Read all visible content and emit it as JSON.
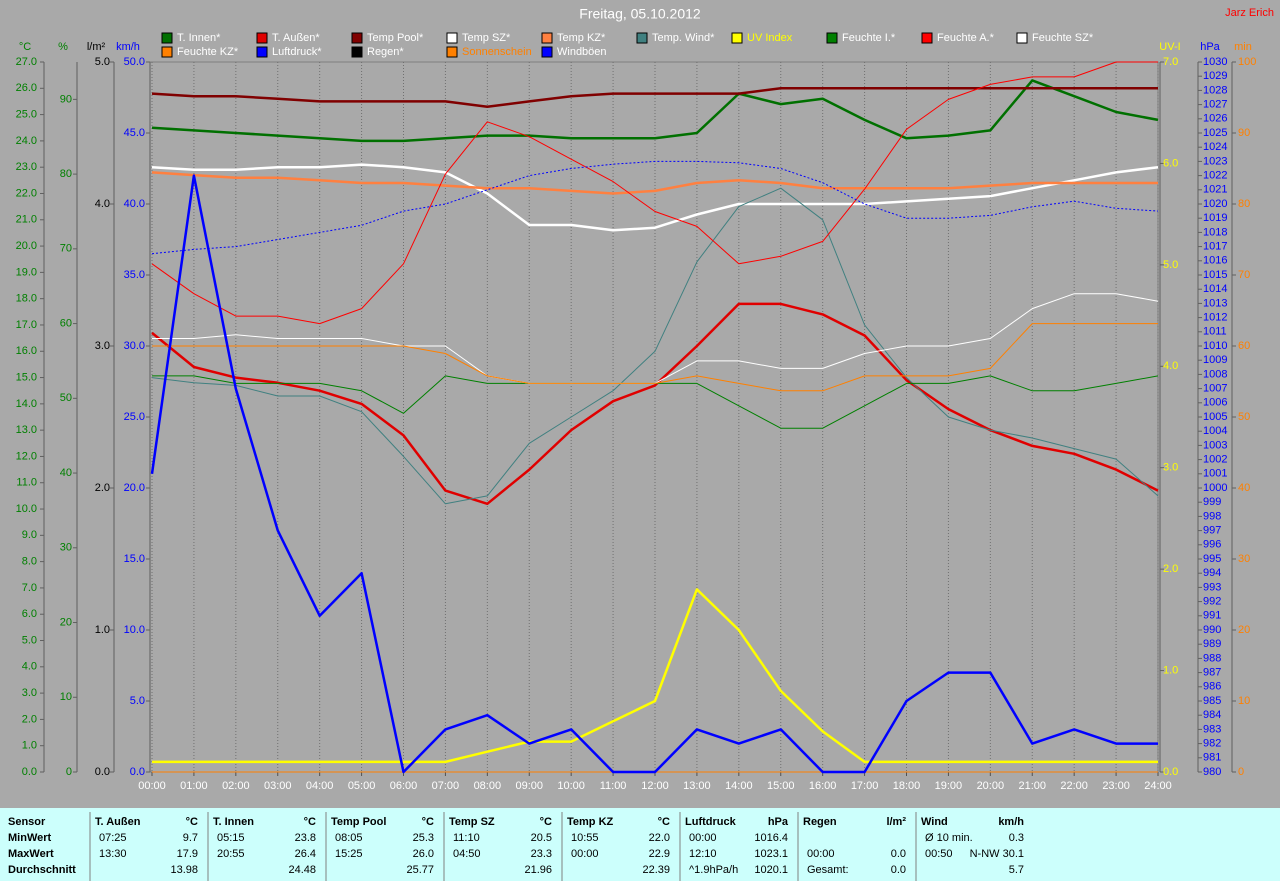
{
  "chart_data": {
    "type": "line",
    "title": "Freitag, 05.10.2012",
    "annotations": [
      "Jarz Erich"
    ],
    "grid": true,
    "x": [
      0,
      1,
      2,
      3,
      4,
      5,
      6,
      7,
      8,
      9,
      10,
      11,
      12,
      13,
      14,
      15,
      16,
      17,
      18,
      19,
      20,
      21,
      22,
      23,
      24
    ],
    "xlim": [
      0,
      24
    ],
    "xticks": [
      {
        "value": 0,
        "label": "00:00"
      },
      {
        "value": 1,
        "label": "01:00"
      },
      {
        "value": 2,
        "label": "02:00"
      },
      {
        "value": 3,
        "label": "03:00"
      },
      {
        "value": 4,
        "label": "04:00"
      },
      {
        "value": 5,
        "label": "05:00"
      },
      {
        "value": 6,
        "label": "06:00"
      },
      {
        "value": 7,
        "label": "07:00"
      },
      {
        "value": 8,
        "label": "08:00"
      },
      {
        "value": 9,
        "label": "09:00"
      },
      {
        "value": 10,
        "label": "10:00"
      },
      {
        "value": 11,
        "label": "11:00"
      },
      {
        "value": 12,
        "label": "12:00"
      },
      {
        "value": 13,
        "label": "13:00"
      },
      {
        "value": 14,
        "label": "14:00"
      },
      {
        "value": 15,
        "label": "15:00"
      },
      {
        "value": 16,
        "label": "16:00"
      },
      {
        "value": 17,
        "label": "17:00"
      },
      {
        "value": 18,
        "label": "18:00"
      },
      {
        "value": 19,
        "label": "19:00"
      },
      {
        "value": 20,
        "label": "20:00"
      },
      {
        "value": 21,
        "label": "21:00"
      },
      {
        "value": 22,
        "label": "22:00"
      },
      {
        "value": 23,
        "label": "23:00"
      },
      {
        "value": 24,
        "label": "24:00"
      }
    ],
    "axes": [
      {
        "label": "°C",
        "color": "#008000",
        "ylim": [
          0,
          27
        ],
        "yticks": [
          {
            "value": 0,
            "label": "0.0"
          },
          {
            "value": 1,
            "label": "1.0"
          },
          {
            "value": 2,
            "label": "2.0"
          },
          {
            "value": 3,
            "label": "3.0"
          },
          {
            "value": 4,
            "label": "4.0"
          },
          {
            "value": 5,
            "label": "5.0"
          },
          {
            "value": 6,
            "label": "6.0"
          },
          {
            "value": 7,
            "label": "7.0"
          },
          {
            "value": 8,
            "label": "8.0"
          },
          {
            "value": 9,
            "label": "9.0"
          },
          {
            "value": 10,
            "label": "10.0"
          },
          {
            "value": 11,
            "label": "11.0"
          },
          {
            "value": 12,
            "label": "12.0"
          },
          {
            "value": 13,
            "label": "13.0"
          },
          {
            "value": 14,
            "label": "14.0"
          },
          {
            "value": 15,
            "label": "15.0"
          },
          {
            "value": 16,
            "label": "16.0"
          },
          {
            "value": 17,
            "label": "17.0"
          },
          {
            "value": 18,
            "label": "18.0"
          },
          {
            "value": 19,
            "label": "19.0"
          },
          {
            "value": 20,
            "label": "20.0"
          },
          {
            "value": 21,
            "label": "21.0"
          },
          {
            "value": 22,
            "label": "22.0"
          },
          {
            "value": 23,
            "label": "23.0"
          },
          {
            "value": 24,
            "label": "24.0"
          },
          {
            "value": 25,
            "label": "25.0"
          },
          {
            "value": 26,
            "label": "26.0"
          },
          {
            "value": 27,
            "label": "27.0"
          }
        ]
      },
      {
        "label": "%",
        "color": "#008000",
        "ylim": [
          0,
          95
        ],
        "yticks": [
          0,
          10,
          20,
          30,
          40,
          50,
          60,
          70,
          80,
          90
        ]
      },
      {
        "label": "l/m²",
        "color": "#000000",
        "ylim": [
          0,
          5
        ],
        "yticks": [
          {
            "value": 0,
            "label": "0.0"
          },
          {
            "value": 1,
            "label": "1.0"
          },
          {
            "value": 2,
            "label": "2.0"
          },
          {
            "value": 3,
            "label": "3.0"
          },
          {
            "value": 4,
            "label": "4.0"
          },
          {
            "value": 5,
            "label": "5.0"
          }
        ]
      },
      {
        "label": "km/h",
        "color": "#0000ff",
        "ylim": [
          0,
          50
        ],
        "yticks": [
          {
            "value": 0,
            "label": "0.0"
          },
          {
            "value": 5,
            "label": "5.0"
          },
          {
            "value": 10,
            "label": "10.0"
          },
          {
            "value": 15,
            "label": "15.0"
          },
          {
            "value": 20,
            "label": "20.0"
          },
          {
            "value": 25,
            "label": "25.0"
          },
          {
            "value": 30,
            "label": "30.0"
          },
          {
            "value": 35,
            "label": "35.0"
          },
          {
            "value": 40,
            "label": "40.0"
          },
          {
            "value": 45,
            "label": "45.0"
          },
          {
            "value": 50,
            "label": "50.0"
          }
        ]
      },
      {
        "label": "UV-I",
        "color": "#ffff00",
        "ylim": [
          0,
          7
        ],
        "yticks": [
          {
            "value": 0,
            "label": "0.0"
          },
          {
            "value": 1,
            "label": "1.0"
          },
          {
            "value": 2,
            "label": "2.0"
          },
          {
            "value": 3,
            "label": "3.0"
          },
          {
            "value": 4,
            "label": "4.0"
          },
          {
            "value": 5,
            "label": "5.0"
          },
          {
            "value": 6,
            "label": "6.0"
          },
          {
            "value": 7,
            "label": "7.0"
          }
        ]
      },
      {
        "label": "hPa",
        "color": "#0000ff",
        "ylim": [
          980,
          1030
        ],
        "yticks": [
          980,
          981,
          982,
          983,
          984,
          985,
          986,
          987,
          988,
          989,
          990,
          991,
          992,
          993,
          994,
          995,
          996,
          997,
          998,
          999,
          1000,
          1001,
          1002,
          1003,
          1004,
          1005,
          1006,
          1007,
          1008,
          1009,
          1010,
          1011,
          1012,
          1013,
          1014,
          1015,
          1016,
          1017,
          1018,
          1019,
          1020,
          1021,
          1022,
          1023,
          1024,
          1025,
          1026,
          1027,
          1028,
          1029,
          1030
        ]
      },
      {
        "label": "min",
        "color": "#ff8000",
        "ylim": [
          0,
          100
        ],
        "yticks": [
          0,
          10,
          20,
          30,
          40,
          50,
          60,
          70,
          80,
          90,
          100
        ]
      }
    ],
    "series": [
      {
        "name": "T. Innen*",
        "color": "#007000",
        "axis": "°C",
        "thick": true,
        "values": [
          24.5,
          24.4,
          24.3,
          24.2,
          24.1,
          24.0,
          24.0,
          24.1,
          24.2,
          24.2,
          24.1,
          24.1,
          24.1,
          24.3,
          25.8,
          25.4,
          25.6,
          24.8,
          24.1,
          24.2,
          24.4,
          26.3,
          25.7,
          25.1,
          24.8
        ]
      },
      {
        "name": "T. Außen*",
        "color": "#e00000",
        "axis": "°C",
        "thick": true,
        "values": [
          16.7,
          15.4,
          15.0,
          14.8,
          14.5,
          14.0,
          12.8,
          10.7,
          10.2,
          11.5,
          13.0,
          14.1,
          14.7,
          16.2,
          17.8,
          17.8,
          17.4,
          16.6,
          14.9,
          13.8,
          13.0,
          12.4,
          12.1,
          11.5,
          10.7
        ]
      },
      {
        "name": "Temp Pool*",
        "color": "#800000",
        "axis": "°C",
        "thick": true,
        "values": [
          25.8,
          25.7,
          25.7,
          25.6,
          25.5,
          25.5,
          25.5,
          25.5,
          25.3,
          25.5,
          25.7,
          25.8,
          25.8,
          25.8,
          25.8,
          26.0,
          26.0,
          26.0,
          26.0,
          26.0,
          26.0,
          26.0,
          26.0,
          26.0,
          26.0
        ]
      },
      {
        "name": "Temp SZ*",
        "color": "#ffffff",
        "axis": "°C",
        "thick": true,
        "values": [
          23.0,
          22.9,
          22.9,
          23.0,
          23.0,
          23.1,
          23.0,
          22.8,
          22.0,
          20.8,
          20.8,
          20.6,
          20.7,
          21.2,
          21.6,
          21.6,
          21.6,
          21.6,
          21.7,
          21.8,
          21.9,
          22.2,
          22.5,
          22.8,
          23.0
        ]
      },
      {
        "name": "Temp KZ*",
        "color": "#ff8040",
        "axis": "°C",
        "thick": true,
        "values": [
          22.8,
          22.7,
          22.6,
          22.6,
          22.5,
          22.4,
          22.4,
          22.3,
          22.2,
          22.2,
          22.1,
          22.0,
          22.1,
          22.4,
          22.5,
          22.4,
          22.2,
          22.2,
          22.2,
          22.2,
          22.3,
          22.4,
          22.4,
          22.4,
          22.4
        ]
      },
      {
        "name": "Temp. Wind*",
        "color": "#408080",
        "axis": "°C",
        "values": [
          15.0,
          14.8,
          14.7,
          14.3,
          14.3,
          13.7,
          12.0,
          10.2,
          10.5,
          12.5,
          13.5,
          14.5,
          16.0,
          19.4,
          21.5,
          22.2,
          21.0,
          17.0,
          15.0,
          13.5,
          13.0,
          12.7,
          12.3,
          11.9,
          10.5
        ]
      },
      {
        "name": "UV Index",
        "color": "#ffff00",
        "label_color": "#ffff00",
        "axis": "UV-I",
        "thick": true,
        "values": [
          0.1,
          0.1,
          0.1,
          0.1,
          0.1,
          0.1,
          0.1,
          0.1,
          0.2,
          0.3,
          0.3,
          0.5,
          0.7,
          1.8,
          1.4,
          0.8,
          0.4,
          0.1,
          0.1,
          0.1,
          0.1,
          0.1,
          0.1,
          0.1,
          0.1
        ]
      },
      {
        "name": "Feuchte I.*",
        "color": "#008000",
        "axis": "%",
        "values": [
          53,
          53,
          52,
          52,
          52,
          51,
          48,
          53,
          52,
          52,
          52,
          52,
          52,
          52,
          49,
          46,
          46,
          49,
          52,
          52,
          53,
          51,
          51,
          52,
          53
        ]
      },
      {
        "name": "Feuchte A.*",
        "color": "#ff0000",
        "axis": "%",
        "values": [
          68,
          64,
          61,
          61,
          60,
          62,
          68,
          80,
          87,
          85,
          82,
          79,
          75,
          73,
          68,
          69,
          71,
          78,
          86,
          90,
          92,
          93,
          93,
          95,
          95
        ]
      },
      {
        "name": "Feuchte SZ*",
        "color": "#ffffff",
        "axis": "%",
        "values": [
          58,
          58,
          58.5,
          58,
          58,
          58,
          57,
          57,
          53,
          52,
          52,
          52,
          52,
          55,
          55,
          54,
          54,
          56,
          57,
          57,
          58,
          62,
          64,
          64,
          63
        ]
      },
      {
        "name": "Feuchte KZ*",
        "color": "#ff8000",
        "axis": "%",
        "values": [
          57,
          57,
          57,
          57,
          57,
          57,
          57,
          56,
          53,
          52,
          52,
          52,
          52,
          53,
          52,
          51,
          51,
          53,
          53,
          53,
          54,
          60,
          60,
          60,
          60
        ]
      },
      {
        "name": "Luftdruck*",
        "color": "#0000ff",
        "axis": "hPa",
        "dashed": true,
        "values": [
          1016.5,
          1016.8,
          1017.0,
          1017.5,
          1018.0,
          1018.5,
          1019.5,
          1020.0,
          1021.0,
          1022.0,
          1022.5,
          1022.8,
          1023.0,
          1023.0,
          1022.9,
          1022.5,
          1021.5,
          1020.0,
          1019.0,
          1019.0,
          1019.2,
          1019.8,
          1020.2,
          1019.7,
          1019.5
        ]
      },
      {
        "name": "Regen*",
        "color": "#000000",
        "axis": "l/m²",
        "values": [
          0,
          0,
          0,
          0,
          0,
          0,
          0,
          0,
          0,
          0,
          0,
          0,
          0,
          0,
          0,
          0,
          0,
          0,
          0,
          0,
          0,
          0,
          0,
          0,
          0
        ]
      },
      {
        "name": "Sonnenschein",
        "color": "#ff8000",
        "label_color": "#ff8000",
        "axis": "min",
        "values": [
          0,
          0,
          0,
          0,
          0,
          0,
          0,
          0,
          0,
          0,
          0,
          0,
          0,
          0,
          0,
          0,
          0,
          0,
          0,
          0,
          0,
          0,
          0,
          0,
          0
        ]
      },
      {
        "name": "Windböen",
        "color": "#0000ff",
        "axis": "km/h",
        "thick": true,
        "values": [
          21,
          42,
          27,
          17,
          11,
          14,
          0,
          3,
          4,
          2,
          3,
          0,
          0,
          3,
          2,
          3,
          0,
          0,
          5,
          7,
          7,
          2,
          3,
          2,
          2
        ]
      }
    ]
  },
  "stats_table": {
    "header": "Sensor",
    "row_labels": [
      "MinWert",
      "MaxWert",
      "Durchschnitt"
    ],
    "blocks": [
      {
        "name": "T. Außen",
        "unit": "°C",
        "rows": [
          [
            "07:25",
            "9.7"
          ],
          [
            "13:30",
            "17.9"
          ],
          [
            null,
            "13.98"
          ]
        ]
      },
      {
        "name": "T. Innen",
        "unit": "°C",
        "rows": [
          [
            "05:15",
            "23.8"
          ],
          [
            "20:55",
            "26.4"
          ],
          [
            null,
            "24.48"
          ]
        ]
      },
      {
        "name": "Temp Pool",
        "unit": "°C",
        "rows": [
          [
            "08:05",
            "25.3"
          ],
          [
            "15:25",
            "26.0"
          ],
          [
            null,
            "25.77"
          ]
        ]
      },
      {
        "name": "Temp SZ",
        "unit": "°C",
        "rows": [
          [
            "11:10",
            "20.5"
          ],
          [
            "04:50",
            "23.3"
          ],
          [
            null,
            "21.96"
          ]
        ]
      },
      {
        "name": "Temp KZ",
        "unit": "°C",
        "rows": [
          [
            "10:55",
            "22.0"
          ],
          [
            "00:00",
            "22.9"
          ],
          [
            null,
            "22.39"
          ]
        ]
      },
      {
        "name": "Luftdruck",
        "unit": "hPa",
        "rows": [
          [
            "00:00",
            "1016.4"
          ],
          [
            "12:10",
            "1023.1"
          ],
          [
            "^1.9hPa/h",
            "1020.1"
          ]
        ]
      },
      {
        "name": "Regen",
        "unit": "l/m²",
        "rows": [
          [
            null,
            null
          ],
          [
            "00:00",
            "0.0"
          ],
          [
            "Gesamt:",
            "0.0"
          ]
        ]
      },
      {
        "name": "Wind",
        "unit": "km/h",
        "rows": [
          [
            "Ø 10 min.",
            "0.3"
          ],
          [
            "00:50",
            "N-NW 30.1"
          ],
          [
            null,
            "5.7"
          ]
        ]
      }
    ]
  }
}
